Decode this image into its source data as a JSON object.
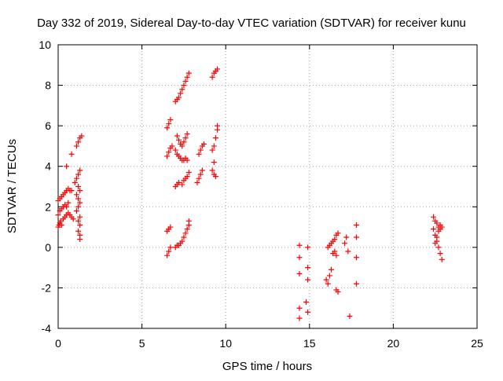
{
  "chart_data": {
    "type": "scatter",
    "title": "Day 332 of 2019, Sidereal Day-to-day VTEC variation (SDTVAR) for receiver kunu",
    "xlabel": "GPS time / hours",
    "ylabel": "SDTVAR / TECUs",
    "xlim": [
      0,
      25
    ],
    "ylim": [
      -4,
      10
    ],
    "x_ticks": [
      0,
      5,
      10,
      15,
      20,
      25
    ],
    "x_tick_labels": [
      "0",
      "5",
      "10",
      "15",
      "20",
      "25"
    ],
    "y_ticks": [
      -4,
      -2,
      0,
      2,
      4,
      6,
      8,
      10
    ],
    "y_tick_labels": [
      "-4",
      "-2",
      "0",
      "2",
      "4",
      "6",
      "8",
      "10"
    ],
    "grid": true,
    "marker": "+",
    "colors": {
      "points": "#ff0000",
      "grid": "#a0a0a0",
      "axes": "#000000"
    },
    "series": [
      {
        "name": "SDTVAR",
        "points": [
          [
            0.0,
            1.0
          ],
          [
            0.05,
            1.1
          ],
          [
            0.1,
            1.2
          ],
          [
            0.15,
            1.3
          ],
          [
            0.2,
            1.1
          ],
          [
            0.3,
            1.4
          ],
          [
            0.4,
            1.5
          ],
          [
            0.5,
            1.6
          ],
          [
            0.6,
            1.7
          ],
          [
            0.7,
            1.6
          ],
          [
            0.8,
            1.5
          ],
          [
            0.9,
            1.4
          ],
          [
            0.0,
            1.6
          ],
          [
            0.1,
            1.8
          ],
          [
            0.2,
            1.9
          ],
          [
            0.3,
            2.0
          ],
          [
            0.4,
            2.1
          ],
          [
            0.5,
            2.0
          ],
          [
            0.6,
            2.2
          ],
          [
            0.0,
            2.3
          ],
          [
            0.1,
            2.4
          ],
          [
            0.2,
            2.5
          ],
          [
            0.3,
            2.6
          ],
          [
            0.4,
            2.7
          ],
          [
            0.5,
            2.8
          ],
          [
            0.6,
            2.9
          ],
          [
            0.7,
            2.8
          ],
          [
            0.8,
            2.8
          ],
          [
            0.5,
            4.0
          ],
          [
            0.8,
            4.6
          ],
          [
            1.0,
            3.2
          ],
          [
            1.1,
            3.4
          ],
          [
            1.2,
            3.6
          ],
          [
            1.3,
            3.8
          ],
          [
            1.2,
            3.0
          ],
          [
            1.3,
            2.8
          ],
          [
            1.1,
            2.6
          ],
          [
            1.2,
            2.4
          ],
          [
            1.3,
            2.2
          ],
          [
            1.2,
            2.0
          ],
          [
            1.1,
            1.8
          ],
          [
            1.3,
            1.5
          ],
          [
            1.2,
            1.3
          ],
          [
            1.3,
            1.1
          ],
          [
            1.2,
            0.8
          ],
          [
            1.3,
            0.6
          ],
          [
            1.3,
            0.4
          ],
          [
            1.1,
            5.0
          ],
          [
            1.2,
            5.2
          ],
          [
            1.3,
            5.4
          ],
          [
            1.4,
            5.5
          ],
          [
            6.5,
            -0.4
          ],
          [
            6.6,
            -0.2
          ],
          [
            6.7,
            0.0
          ],
          [
            6.5,
            0.8
          ],
          [
            6.6,
            0.9
          ],
          [
            6.7,
            1.0
          ],
          [
            6.5,
            4.5
          ],
          [
            6.6,
            4.7
          ],
          [
            6.7,
            4.9
          ],
          [
            6.8,
            5.0
          ],
          [
            6.5,
            5.9
          ],
          [
            6.6,
            6.1
          ],
          [
            6.7,
            6.3
          ],
          [
            7.0,
            0.0
          ],
          [
            7.1,
            0.1
          ],
          [
            7.2,
            0.1
          ],
          [
            7.3,
            0.2
          ],
          [
            7.4,
            0.3
          ],
          [
            7.5,
            0.5
          ],
          [
            7.6,
            0.7
          ],
          [
            7.7,
            0.9
          ],
          [
            7.8,
            1.1
          ],
          [
            7.8,
            1.3
          ],
          [
            7.0,
            3.0
          ],
          [
            7.1,
            3.1
          ],
          [
            7.2,
            3.2
          ],
          [
            7.4,
            3.1
          ],
          [
            7.5,
            3.3
          ],
          [
            7.6,
            3.4
          ],
          [
            7.7,
            3.5
          ],
          [
            7.8,
            3.7
          ],
          [
            7.0,
            4.8
          ],
          [
            7.1,
            4.6
          ],
          [
            7.2,
            4.5
          ],
          [
            7.3,
            4.4
          ],
          [
            7.4,
            4.3
          ],
          [
            7.5,
            4.3
          ],
          [
            7.6,
            4.4
          ],
          [
            7.7,
            4.3
          ],
          [
            7.1,
            5.5
          ],
          [
            7.2,
            5.3
          ],
          [
            7.3,
            5.1
          ],
          [
            7.4,
            5.0
          ],
          [
            7.5,
            5.2
          ],
          [
            7.6,
            5.4
          ],
          [
            7.7,
            5.6
          ],
          [
            7.0,
            7.2
          ],
          [
            7.1,
            7.3
          ],
          [
            7.2,
            7.4
          ],
          [
            7.3,
            7.6
          ],
          [
            7.4,
            7.8
          ],
          [
            7.5,
            8.0
          ],
          [
            7.6,
            8.2
          ],
          [
            7.7,
            8.4
          ],
          [
            7.8,
            8.6
          ],
          [
            8.3,
            3.2
          ],
          [
            8.4,
            3.4
          ],
          [
            8.5,
            3.6
          ],
          [
            8.6,
            3.8
          ],
          [
            8.4,
            4.6
          ],
          [
            8.5,
            4.8
          ],
          [
            8.6,
            5.0
          ],
          [
            8.7,
            5.1
          ],
          [
            9.2,
            3.8
          ],
          [
            9.3,
            3.6
          ],
          [
            9.4,
            3.5
          ],
          [
            9.3,
            4.2
          ],
          [
            9.2,
            4.8
          ],
          [
            9.3,
            5.0
          ],
          [
            9.4,
            5.4
          ],
          [
            9.5,
            5.8
          ],
          [
            9.5,
            6.0
          ],
          [
            9.2,
            8.4
          ],
          [
            9.3,
            8.6
          ],
          [
            9.4,
            8.7
          ],
          [
            9.5,
            8.8
          ],
          [
            14.4,
            0.1
          ],
          [
            14.4,
            -0.5
          ],
          [
            14.4,
            -1.3
          ],
          [
            14.9,
            0.0
          ],
          [
            14.9,
            -1.0
          ],
          [
            14.9,
            -1.6
          ],
          [
            14.8,
            -2.7
          ],
          [
            14.4,
            -3.0
          ],
          [
            14.4,
            -3.5
          ],
          [
            14.9,
            -3.2
          ],
          [
            16.1,
            0.0
          ],
          [
            16.2,
            0.1
          ],
          [
            16.3,
            0.2
          ],
          [
            16.4,
            0.3
          ],
          [
            16.5,
            0.4
          ],
          [
            16.6,
            0.6
          ],
          [
            16.7,
            0.7
          ],
          [
            16.0,
            -1.6
          ],
          [
            16.1,
            -1.8
          ],
          [
            16.2,
            -1.4
          ],
          [
            16.3,
            -1.1
          ],
          [
            16.4,
            -0.3
          ],
          [
            16.5,
            -0.2
          ],
          [
            16.6,
            -0.4
          ],
          [
            16.6,
            -2.1
          ],
          [
            16.7,
            -2.2
          ],
          [
            17.1,
            0.2
          ],
          [
            17.2,
            0.5
          ],
          [
            17.3,
            -0.2
          ],
          [
            17.4,
            -3.4
          ],
          [
            17.8,
            1.1
          ],
          [
            17.8,
            0.5
          ],
          [
            17.8,
            -0.5
          ],
          [
            17.8,
            -1.8
          ],
          [
            22.4,
            1.5
          ],
          [
            22.5,
            1.3
          ],
          [
            22.6,
            1.2
          ],
          [
            22.7,
            1.0
          ],
          [
            22.8,
            0.9
          ],
          [
            22.4,
            0.9
          ],
          [
            22.5,
            0.6
          ],
          [
            22.6,
            0.3
          ],
          [
            22.7,
            0.0
          ],
          [
            22.8,
            -0.3
          ],
          [
            22.9,
            -0.6
          ],
          [
            22.5,
            0.2
          ],
          [
            22.6,
            0.5
          ],
          [
            22.7,
            0.8
          ],
          [
            22.8,
            1.1
          ],
          [
            22.9,
            1.0
          ]
        ]
      }
    ]
  }
}
